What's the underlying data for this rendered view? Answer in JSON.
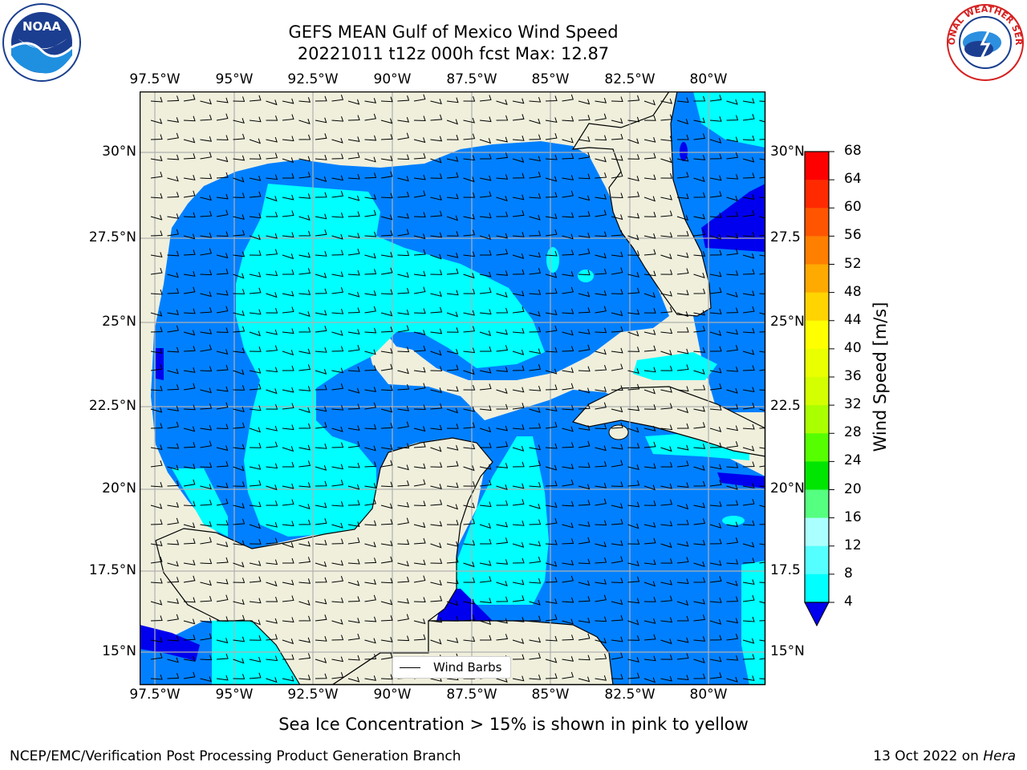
{
  "title_line1": "GEFS MEAN Gulf of Mexico Wind Speed",
  "title_line2": "20221011 t12z 000h fcst   Max: 12.87",
  "lon_labels": [
    "97.5°W",
    "95°W",
    "92.5°W",
    "90°W",
    "87.5°W",
    "85°W",
    "82.5°W",
    "80°W"
  ],
  "lat_labels": [
    "30°N",
    "27.5°N",
    "25°N",
    "22.5°N",
    "20°N",
    "17.5°N",
    "15°N"
  ],
  "lat_labels_right": [
    "30°N",
    "27.5",
    "25°N",
    "22.5",
    "20°N",
    "17.5",
    "15°N"
  ],
  "colorbar": {
    "title": "Wind Speed [m/s]",
    "ticks": [
      "68",
      "64",
      "60",
      "56",
      "52",
      "48",
      "44",
      "40",
      "36",
      "32",
      "28",
      "24",
      "20",
      "16",
      "12",
      "8",
      "4"
    ],
    "colors": [
      "#ff0000",
      "#ff2a00",
      "#ff5500",
      "#ff7f00",
      "#ffaa00",
      "#ffd400",
      "#ffff00",
      "#eaff00",
      "#d4ff00",
      "#aaff00",
      "#55ff00",
      "#00e600",
      "#55ff7f",
      "#aaffff",
      "#55ffff",
      "#00ffff",
      "#0080ff"
    ],
    "under_color": "#0000ee"
  },
  "legend_label": "Wind Barbs",
  "caption": "Sea Ice Concentration > 15% is shown in pink to yellow",
  "footer_left": "NCEP/EMC/Verification Post Processing Product Generation Branch",
  "footer_right_date": "13 Oct 2022 on ",
  "footer_right_host": "Hera",
  "logos": {
    "left": "NOAA",
    "right": "NATIONAL WEATHER SERVICE"
  },
  "colors": {
    "land": "#efefdc",
    "ocean_low": "#0080ff",
    "ocean_mid": "#00ffff",
    "ocean_min": "#0000ee"
  }
}
